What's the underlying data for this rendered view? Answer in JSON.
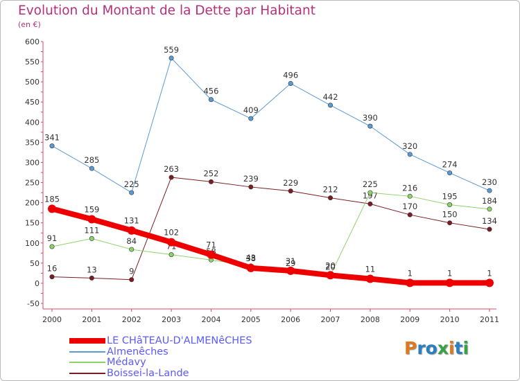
{
  "title": "Evolution du Montant de la Dette par Habitant",
  "subtitle": "(en €)",
  "logo": {
    "text": "Proxiti",
    "colors": [
      "#e07820",
      "#2a7fc0",
      "#2a7fc0",
      "#3aa048",
      "#e07820",
      "#2a7fc0",
      "#3aa048"
    ]
  },
  "chart_data": {
    "type": "line",
    "x": [
      "2000",
      "2001",
      "2002",
      "2003",
      "2004",
      "2005",
      "2006",
      "2007",
      "2008",
      "2009",
      "2010",
      "2011"
    ],
    "ylim": [
      -50,
      600
    ],
    "yticks": [
      "-50",
      "0",
      "50",
      "100",
      "150",
      "200",
      "250",
      "300",
      "350",
      "400",
      "450",
      "500",
      "550",
      "600"
    ],
    "grid": false,
    "legend_position": "bottom-left",
    "series": [
      {
        "name": "Almenêches",
        "color": "#5b9bd5",
        "values": [
          341,
          285,
          225,
          559,
          456,
          409,
          496,
          442,
          390,
          320,
          274,
          230
        ],
        "labels": [
          "341",
          "285",
          "225",
          "559",
          "456",
          "409",
          "496",
          "442",
          "390",
          "320",
          "274",
          "230"
        ]
      },
      {
        "name": "Boissei-la-Lande",
        "color": "#7b1c22",
        "values": [
          16,
          13,
          9,
          263,
          252,
          239,
          229,
          212,
          197,
          170,
          150,
          134
        ],
        "labels": [
          "16",
          "13",
          "9",
          "263",
          "252",
          "239",
          "229",
          "212",
          "197",
          "170",
          "150",
          "134"
        ]
      },
      {
        "name": "Médavy",
        "color": "#8ed36a",
        "values": [
          91,
          111,
          84,
          71,
          58,
          43,
          29,
          20,
          225,
          216,
          195,
          184
        ],
        "labels": [
          "91",
          "111",
          "84",
          "71",
          "58",
          "43",
          "29",
          "20",
          "225",
          "216",
          "195",
          "184"
        ]
      },
      {
        "name": "LE CHâTEAU-D'ALMENêCHES",
        "color": "#ee0000",
        "values": [
          185,
          159,
          131,
          102,
          71,
          38,
          31,
          20,
          11,
          1,
          1,
          1
        ],
        "labels": [
          "185",
          "159",
          "131",
          "102",
          "71",
          "38",
          "31",
          "20",
          "11",
          "1",
          "1",
          "1"
        ],
        "thick": true
      }
    ],
    "legend": [
      {
        "label": "LE CHâTEAU-D'ALMENêCHES",
        "color": "#ee0000",
        "thick": true
      },
      {
        "label": "Almenêches",
        "color": "#5b9bd5",
        "thick": false
      },
      {
        "label": "Médavy",
        "color": "#8ed36a",
        "thick": false
      },
      {
        "label": "Boissei-la-Lande",
        "color": "#7b1c22",
        "thick": false
      }
    ]
  }
}
